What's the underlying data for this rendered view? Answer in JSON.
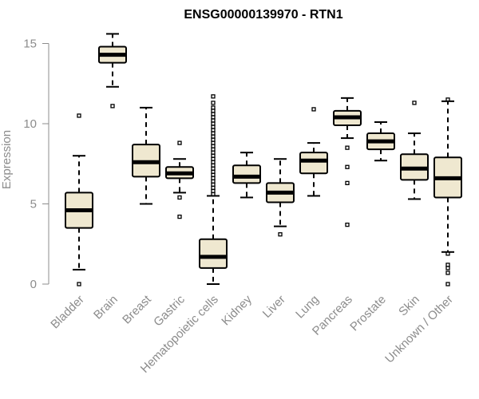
{
  "chart_data": {
    "type": "boxplot",
    "title": "ENSG00000139970 - RTN1",
    "xlabel": "",
    "ylabel": "Expression",
    "ylim": [
      -0.3,
      16
    ],
    "yticks": [
      0,
      5,
      10,
      15
    ],
    "box_color": "#efe8d0",
    "line_color": "#000000",
    "axis_color": "#8c8c8c",
    "categories": [
      {
        "name": "Bladder",
        "whisker_low": 0.9,
        "q1": 3.5,
        "median": 4.6,
        "q3": 5.7,
        "whisker_high": 8.0,
        "outliers": [
          0.0,
          10.5
        ]
      },
      {
        "name": "Brain",
        "whisker_low": 12.3,
        "q1": 13.8,
        "median": 14.3,
        "q3": 14.8,
        "whisker_high": 15.6,
        "outliers": [
          11.1
        ]
      },
      {
        "name": "Breast",
        "whisker_low": 5.0,
        "q1": 6.7,
        "median": 7.6,
        "q3": 8.7,
        "whisker_high": 11.0,
        "outliers": []
      },
      {
        "name": "Gastric",
        "whisker_low": 5.7,
        "q1": 6.6,
        "median": 6.9,
        "q3": 7.3,
        "whisker_high": 7.8,
        "outliers": [
          4.2,
          5.4,
          8.8
        ]
      },
      {
        "name": "Hematopoietic cells",
        "whisker_low": 0.0,
        "q1": 1.0,
        "median": 1.7,
        "q3": 2.8,
        "whisker_high": 5.5,
        "outliers": [
          5.6,
          5.8,
          6.0,
          6.2,
          6.4,
          6.6,
          6.8,
          7.0,
          7.2,
          7.4,
          7.6,
          7.8,
          8.0,
          8.2,
          8.4,
          8.6,
          8.8,
          9.0,
          9.2,
          9.4,
          9.6,
          9.8,
          10.0,
          10.2,
          10.4,
          10.6,
          10.8,
          11.0,
          11.3,
          11.7
        ]
      },
      {
        "name": "Kidney",
        "whisker_low": 5.4,
        "q1": 6.3,
        "median": 6.7,
        "q3": 7.4,
        "whisker_high": 8.2,
        "outliers": []
      },
      {
        "name": "Liver",
        "whisker_low": 3.6,
        "q1": 5.1,
        "median": 5.7,
        "q3": 6.3,
        "whisker_high": 7.8,
        "outliers": [
          3.1
        ]
      },
      {
        "name": "Lung",
        "whisker_low": 5.5,
        "q1": 6.9,
        "median": 7.7,
        "q3": 8.2,
        "whisker_high": 8.8,
        "outliers": [
          10.9
        ]
      },
      {
        "name": "Pancreas",
        "whisker_low": 9.1,
        "q1": 9.9,
        "median": 10.4,
        "q3": 10.8,
        "whisker_high": 11.6,
        "outliers": [
          3.7,
          6.3,
          7.3,
          8.5
        ]
      },
      {
        "name": "Prostate",
        "whisker_low": 7.7,
        "q1": 8.4,
        "median": 8.9,
        "q3": 9.4,
        "whisker_high": 10.1,
        "outliers": []
      },
      {
        "name": "Skin",
        "whisker_low": 5.3,
        "q1": 6.5,
        "median": 7.2,
        "q3": 8.1,
        "whisker_high": 9.4,
        "outliers": [
          11.3
        ]
      },
      {
        "name": "Unknown / Other",
        "whisker_low": 2.0,
        "q1": 5.4,
        "median": 6.6,
        "q3": 7.9,
        "whisker_high": 11.4,
        "outliers": [
          0.0,
          0.7,
          1.0,
          1.2,
          1.9,
          11.5
        ]
      }
    ]
  }
}
